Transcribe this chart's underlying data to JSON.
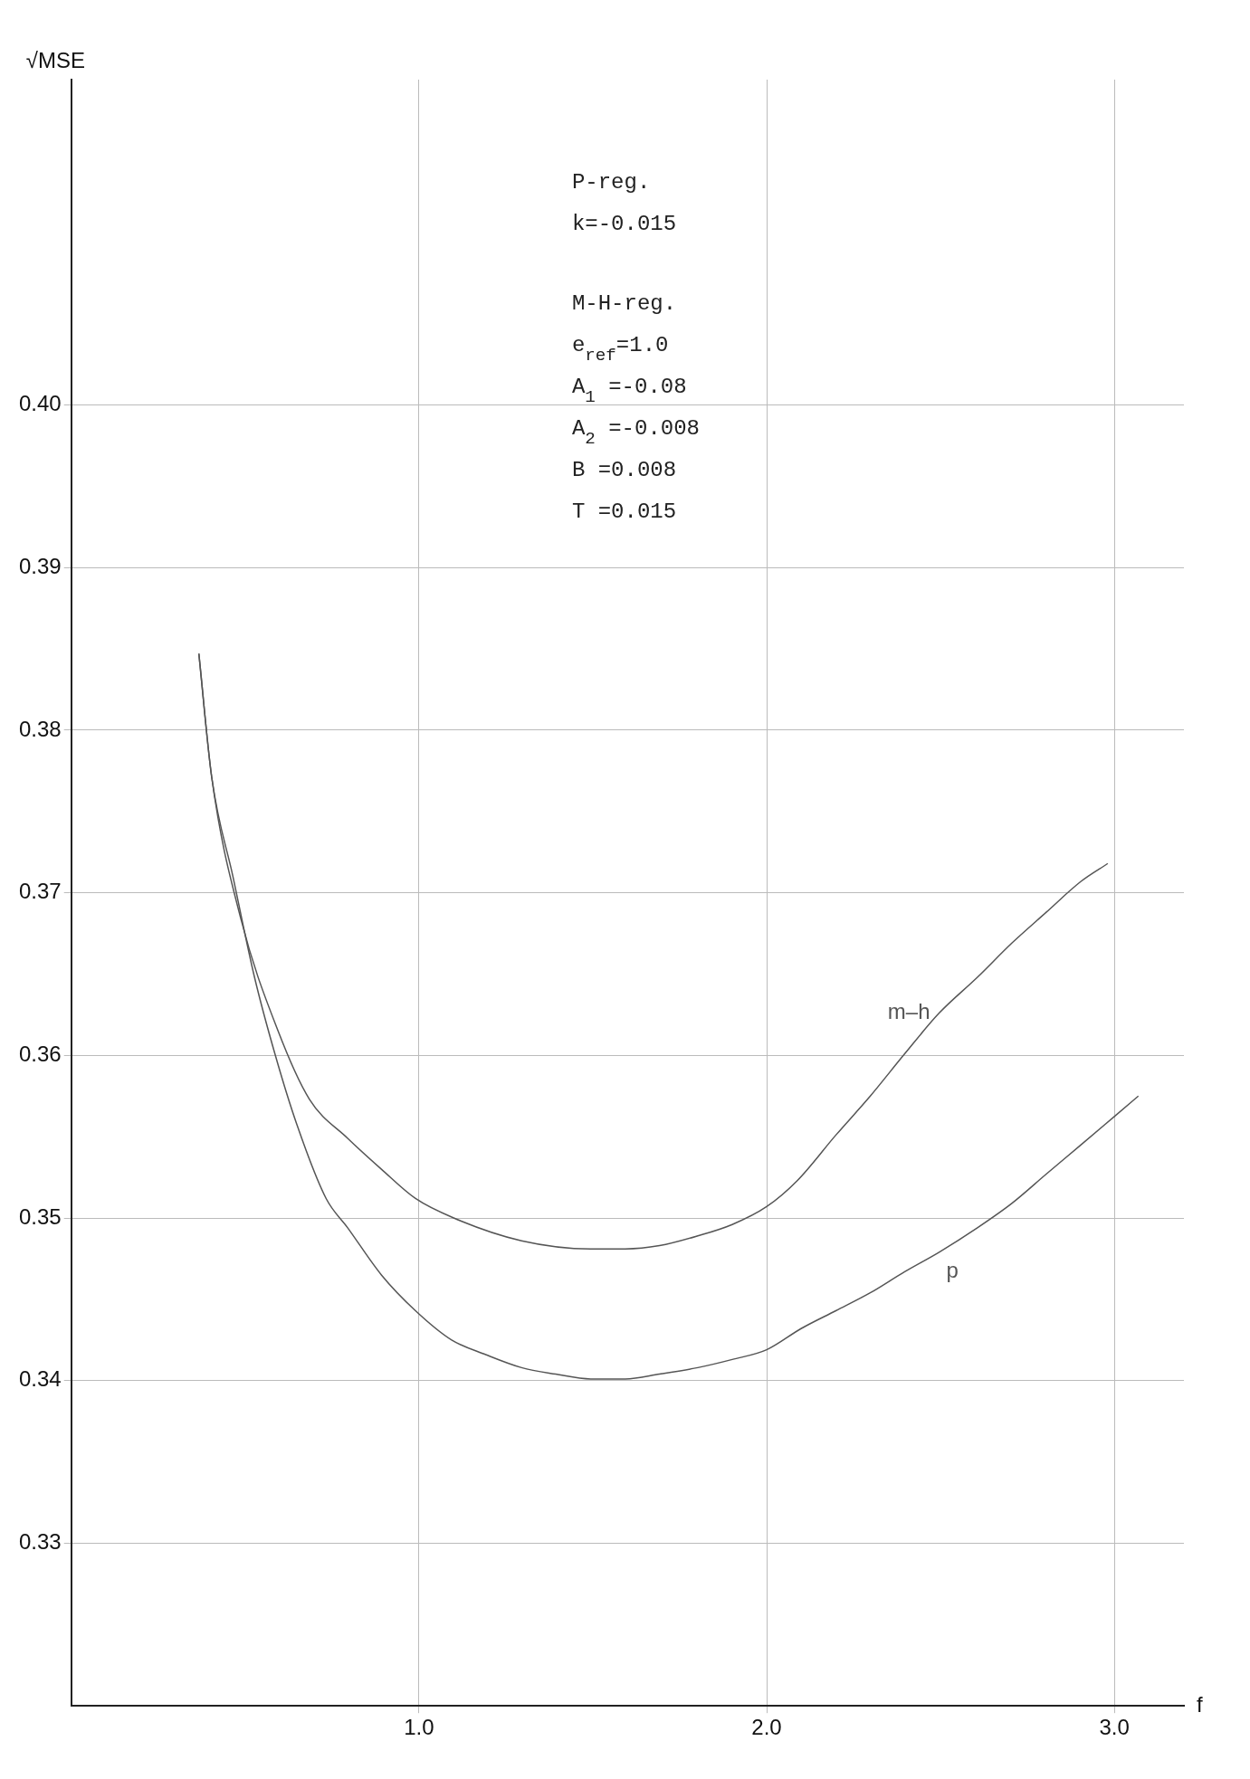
{
  "chart_data": {
    "type": "line",
    "xlabel": "f",
    "ylabel": "√MSE",
    "xlim": [
      0,
      3.2
    ],
    "xticks": [
      {
        "value": 1,
        "label": "1.0"
      },
      {
        "value": 2,
        "label": "2.0"
      },
      {
        "value": 3,
        "label": "3.0"
      }
    ],
    "ylim": [
      0.32,
      0.42
    ],
    "yticks": [
      0.33,
      0.34,
      0.35,
      0.36,
      0.37,
      0.38,
      0.39,
      {
        "value": 0.4,
        "label": "0.40"
      }
    ],
    "grid": true,
    "legend": false,
    "marker": "none",
    "line_style": "solid",
    "annotations": [
      "P-reg.",
      "k=-0.015",
      "M-H-reg.",
      "e$_{ref}$=1.0",
      "A$_{1}$ =-0.08",
      "A$_{2}$ =-0.008",
      "B =0.008",
      "T =0.015"
    ],
    "series": [
      {
        "name": "m–h",
        "color": "#555555",
        "x": [
          0.367,
          0.404,
          0.489,
          0.593,
          0.685,
          0.795,
          0.892,
          0.99,
          1.1,
          1.295,
          1.494,
          1.593,
          1.692,
          1.802,
          1.901,
          2.0,
          2.088,
          2.199,
          2.298,
          2.397,
          2.496,
          2.606,
          2.705,
          2.804,
          2.904,
          2.981
        ],
        "values": [
          0.3847,
          0.3771,
          0.3683,
          0.3616,
          0.3573,
          0.3549,
          0.353,
          0.3512,
          0.35,
          0.3486,
          0.3481,
          0.3481,
          0.3483,
          0.3489,
          0.3496,
          0.3507,
          0.3523,
          0.3551,
          0.3575,
          0.3601,
          0.3626,
          0.3648,
          0.3669,
          0.3688,
          0.3707,
          0.3718
        ]
      },
      {
        "name": "p",
        "color": "#555555",
        "x": [
          0.367,
          0.404,
          0.465,
          0.526,
          0.587,
          0.648,
          0.733,
          0.795,
          0.892,
          0.99,
          1.094,
          1.192,
          1.295,
          1.393,
          1.494,
          1.593,
          1.692,
          1.802,
          1.901,
          2.0,
          2.099,
          2.199,
          2.298,
          2.397,
          2.496,
          2.606,
          2.705,
          2.804,
          2.904,
          3.003,
          3.069
        ],
        "values": [
          0.3847,
          0.3771,
          0.371,
          0.3649,
          0.36,
          0.3558,
          0.3512,
          0.3494,
          0.3465,
          0.3443,
          0.3425,
          0.3416,
          0.3408,
          0.3404,
          0.3401,
          0.3401,
          0.3404,
          0.3408,
          0.3413,
          0.3419,
          0.3432,
          0.3443,
          0.3454,
          0.3467,
          0.3479,
          0.3494,
          0.3509,
          0.3527,
          0.3545,
          0.3563,
          0.3575
        ]
      }
    ]
  }
}
